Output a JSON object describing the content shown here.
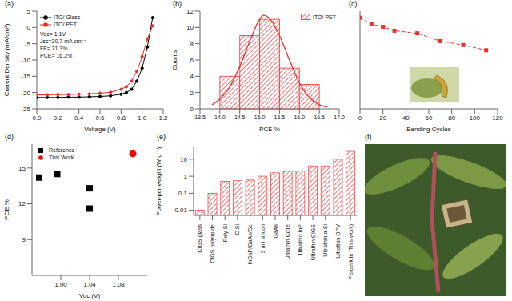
{
  "chart_data": [
    {
      "panel": "(a)",
      "type": "line",
      "x_label": "Voltage (V)",
      "y_label": "Current Density (mA/cm²)",
      "x": [
        0,
        0.1,
        0.2,
        0.3,
        0.4,
        0.5,
        0.6,
        0.7,
        0.8,
        0.85,
        0.9,
        0.95,
        1.0,
        1.05,
        1.1
      ],
      "series": [
        {
          "name": "ITO/ Glass",
          "color": "#000000",
          "marker": "circle",
          "values": [
            -21.5,
            -21.5,
            -21.5,
            -21.4,
            -21.4,
            -21.3,
            -21.2,
            -21.0,
            -20.5,
            -20.0,
            -19.0,
            -16.5,
            -12.5,
            -6.0,
            3.0
          ]
        },
        {
          "name": "ITO/ PET",
          "color": "#e8302f",
          "marker": "circle",
          "values": [
            -20.7,
            -20.7,
            -20.6,
            -20.6,
            -20.5,
            -20.4,
            -20.2,
            -19.9,
            -19.0,
            -18.2,
            -16.5,
            -13.5,
            -9.0,
            -3.5,
            0.5
          ]
        }
      ],
      "xlim": [
        0,
        1.2
      ],
      "xticks": [
        {
          "value": 0,
          "label": "0.0"
        },
        0.2,
        0.4,
        0.6,
        0.8,
        {
          "value": 1,
          "label": "1.0"
        },
        1.2
      ],
      "ylim": [
        -25,
        5
      ],
      "yticks": [
        -25,
        -20,
        -15,
        -10,
        -5,
        0,
        5
      ],
      "legend": "top-left",
      "annotations": [
        "Voc= 1.1V",
        "Jsc=20.7 mA cm⁻²",
        "FF= 71.3%",
        "PCE= 16.2%"
      ]
    },
    {
      "panel": "(b)",
      "type": "histogram",
      "name": "ITO/ PET",
      "color": "#e8302f",
      "x_label": "PCE %",
      "y_label": "Counts",
      "bins": [
        14,
        14.5,
        15,
        15.5,
        16,
        16.5
      ],
      "counts": [
        4,
        9,
        11,
        5,
        3
      ],
      "fit": {
        "x": [
          13.8,
          14.0,
          14.25,
          14.5,
          14.75,
          15.0,
          15.1,
          15.25,
          15.5,
          15.75,
          16.0,
          16.25,
          16.5,
          16.7
        ],
        "values": [
          0.5,
          1.2,
          2.7,
          5.2,
          8.3,
          11.0,
          11.5,
          11.1,
          9.0,
          6.0,
          3.2,
          1.4,
          0.5,
          0.2
        ]
      },
      "xlim": [
        13.5,
        17
      ],
      "xticks": [
        13.5,
        {
          "value": 14,
          "label": "14.0"
        },
        14.5,
        {
          "value": 15,
          "label": "15.0"
        },
        15.5,
        {
          "value": 16,
          "label": "16.0"
        },
        16.5,
        {
          "value": 17,
          "label": "17.0"
        }
      ],
      "ylim": [
        0,
        12
      ],
      "yticks": [
        0,
        2,
        4,
        6,
        8,
        10,
        12
      ],
      "legend": "top-right"
    },
    {
      "panel": "(c)",
      "type": "line",
      "x_label": "Bending Cycles",
      "color": "#e8302f",
      "marker": "square",
      "line_style": "dashed",
      "x": [
        0,
        10,
        20,
        30,
        50,
        70,
        90,
        110
      ],
      "values": [
        1.0,
        0.95,
        0.93,
        0.9,
        0.88,
        0.82,
        0.79,
        0.75
      ],
      "xlim": [
        0,
        120
      ],
      "xticks": [
        0,
        20,
        40,
        60,
        80,
        100,
        120
      ],
      "ylim": [
        0.3,
        1.05
      ],
      "tick_labels": "x"
    },
    {
      "panel": "(d)",
      "type": "scatter",
      "x_label": "Voc (V)",
      "y_label": "PCE %",
      "series": [
        {
          "name": "Reference",
          "color": "#000000",
          "marker": "square",
          "x": [
            0.97,
            0.995,
            1.04,
            1.04
          ],
          "values": [
            14.2,
            14.5,
            13.3,
            11.6
          ]
        },
        {
          "name": "This Work",
          "color": "#ff0000",
          "marker": "circle",
          "x": [
            1.1
          ],
          "values": [
            16.2
          ]
        }
      ],
      "xlim": [
        0.96,
        1.12
      ],
      "xticks": [
        {
          "value": 1,
          "label": "1.00"
        },
        1.04,
        1.08
      ],
      "ylim": [
        6,
        17
      ],
      "yticks": [
        9,
        12,
        15
      ],
      "legend": "top-left"
    },
    {
      "panel": "(e)",
      "type": "bar",
      "log": "y",
      "color": "#e8302f",
      "y_label": "Power-per-weight (W g⁻¹)",
      "categories": [
        "CIGS glass",
        "CIGS polyimide",
        "Poly-Si",
        "C-Si",
        "InGaP/GaAs/Ge",
        "3 mil silicon",
        "GaAs",
        "Ultrathin CdTe",
        "Ultrathin InP",
        "Ultrathin CIGS",
        "Ultrathin α-Si",
        "Ultrathin OPV",
        "Perovskite (This work)"
      ],
      "values": [
        0.01,
        0.1,
        0.5,
        0.55,
        0.6,
        1.0,
        1.6,
        2.0,
        2.0,
        4.0,
        4.0,
        10,
        29
      ],
      "ylim": [
        0.005,
        50
      ],
      "yticks": [
        0.01,
        0.1,
        1,
        10
      ]
    },
    {
      "panel": "(f)",
      "type": "photo"
    }
  ]
}
